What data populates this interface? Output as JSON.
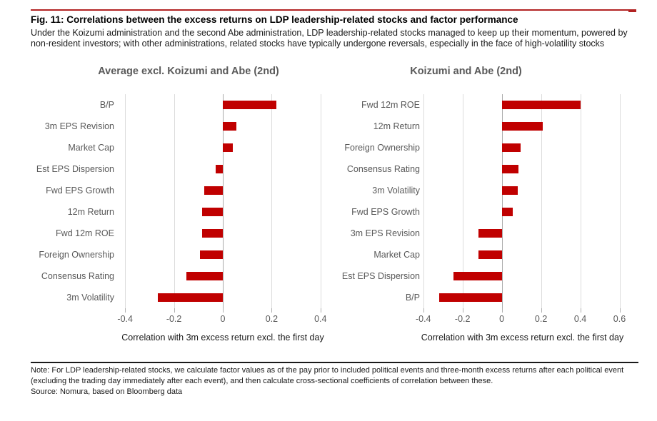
{
  "figure": {
    "title": "Fig. 11: Correlations between the excess returns on LDP leadership-related stocks and factor performance",
    "subtitle_lines": [
      "Under the Koizumi administration and the second Abe administration, LDP leadership-related stocks managed to keep up their momentum, powered by",
      "non-resident investors; with other administrations, related stocks have typically undergone reversals, especially in the face of high-volatility stocks"
    ]
  },
  "colors": {
    "bar_red": "#C00000",
    "rule_red": "#B22222",
    "gridline": "#DCDCDC",
    "zero_line": "#ABABAB",
    "text_gray": "#595959",
    "text_black": "#1A1A1A"
  },
  "chart_data": [
    {
      "type": "bar",
      "orientation": "horizontal",
      "title": "Average excl. Koizumi and Abe (2nd)",
      "xlabel": "Correlation with 3m excess return excl. the first day",
      "categories": [
        "B/P",
        "3m EPS Revision",
        "Market Cap",
        "Est EPS Dispersion",
        "Fwd EPS Growth",
        "12m Return",
        "Fwd 12m ROE",
        "Foreign Ownership",
        "Consensus Rating",
        "3m Volatility"
      ],
      "values": [
        0.22,
        0.055,
        0.04,
        -0.03,
        -0.075,
        -0.085,
        -0.085,
        -0.095,
        -0.15,
        -0.265
      ],
      "tick_labels": [
        "-0.4",
        "-0.2",
        "0",
        "0.2",
        "0.4"
      ],
      "xlim": [
        -0.5,
        0.5
      ],
      "grid": true,
      "legend": "none"
    },
    {
      "type": "bar",
      "orientation": "horizontal",
      "title": "Koizumi and Abe (2nd)",
      "xlabel": "Correlation with 3m excess return excl. the first day",
      "categories": [
        "Fwd 12m ROE",
        "12m Return",
        "Foreign Ownership",
        "Consensus Rating",
        "3m Volatility",
        "Fwd EPS Growth",
        "3m EPS Revision",
        "Market Cap",
        "Est EPS Dispersion",
        "B/P"
      ],
      "values": [
        0.4,
        0.21,
        0.095,
        0.085,
        0.08,
        0.055,
        -0.12,
        -0.12,
        -0.245,
        -0.32
      ],
      "tick_labels": [
        "-0.4",
        "-0.2",
        "0",
        "0.2",
        "0.4",
        "0.6"
      ],
      "xlim": [
        -0.45,
        0.66
      ],
      "grid": true,
      "legend": "none"
    }
  ],
  "note": {
    "lines": [
      "Note: For LDP leadership-related stocks, we calculate factor values as of the pay prior to included political events and three-month excess returns after each political event",
      "(excluding the trading day immediately after each event), and then calculate cross-sectional coefficients of correlation between these."
    ],
    "source": "Source: Nomura, based on Bloomberg data"
  }
}
